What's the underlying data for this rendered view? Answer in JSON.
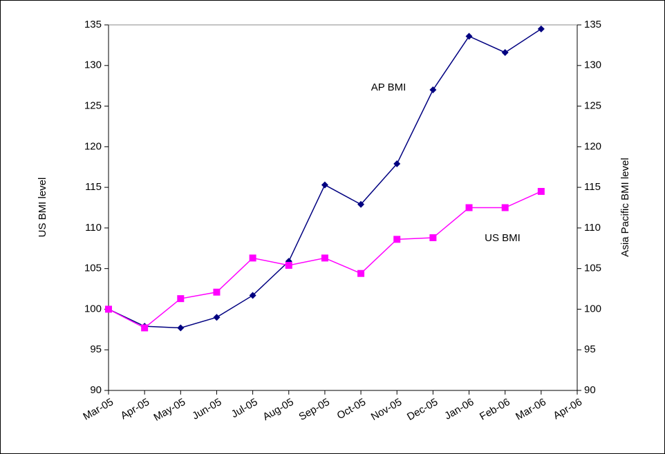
{
  "chart_data": {
    "type": "line",
    "ylabel": "US BMI level",
    "y2label": "Asia Pacific BMI level",
    "categories": [
      "Mar-05",
      "Apr-05",
      "May-05",
      "Jun-05",
      "Jul-05",
      "Aug-05",
      "Sep-05",
      "Oct-05",
      "Nov-05",
      "Dec-05",
      "Jan-06",
      "Feb-06",
      "Mar-06",
      "Apr-06"
    ],
    "series": [
      {
        "name": "AP BMI",
        "color": "#000080",
        "marker": "diamond",
        "axis": "y2",
        "values": [
          100,
          97.9,
          97.7,
          99.0,
          101.7,
          105.9,
          115.3,
          112.9,
          117.9,
          127.0,
          133.6,
          131.6,
          134.5,
          null
        ]
      },
      {
        "name": "US BMI",
        "color": "#ff00ff",
        "marker": "square",
        "values": [
          100,
          97.7,
          101.3,
          102.1,
          106.3,
          105.4,
          106.3,
          104.4,
          108.6,
          108.8,
          112.5,
          112.5,
          114.5,
          null
        ]
      }
    ],
    "annotations": [
      "AP BMI",
      "US BMI"
    ],
    "ylim": [
      90,
      135
    ],
    "yticks": [
      90,
      95,
      100,
      105,
      110,
      115,
      120,
      125,
      130,
      135
    ],
    "y2lim": [
      90,
      135
    ],
    "y2ticks": [
      90,
      95,
      100,
      105,
      110,
      115,
      120,
      125,
      130,
      135
    ],
    "grid": false
  }
}
